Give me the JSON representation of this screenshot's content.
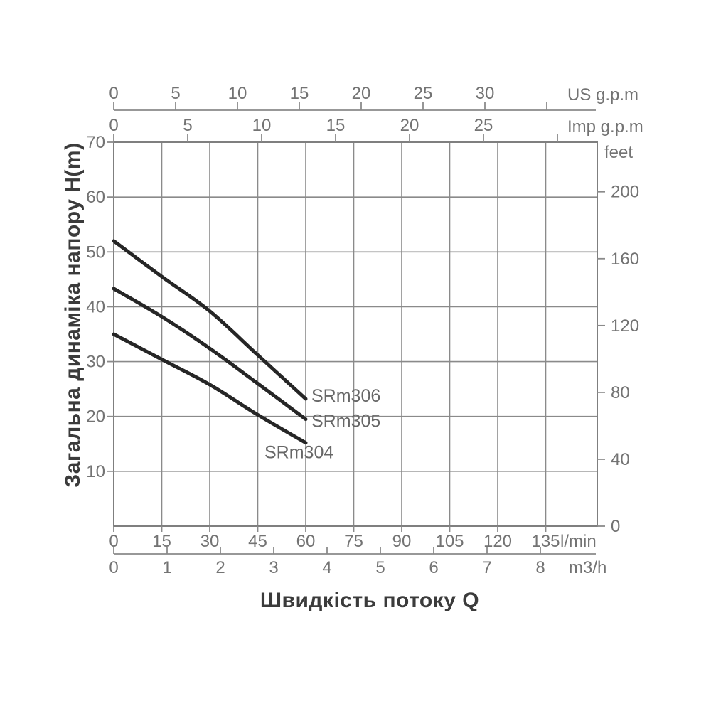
{
  "colors": {
    "grid": "#8a8a8a",
    "frame": "#7f7f7f",
    "curve": "#262626",
    "tick_text": "#737373",
    "curve_label_text": "#676767",
    "title_text": "#3b3b3b"
  },
  "chart_data": {
    "type": "line",
    "title": "",
    "xlabel": "Швидкість потоку Q",
    "ylabel": "Загальна динаміка напору H(m)",
    "x_range_lmin": [
      0,
      151
    ],
    "y_range_m": [
      0,
      70
    ],
    "grid": true,
    "legend_position": "inline-right-of-curves",
    "axes": {
      "top_us": {
        "unit": "US g.p.m",
        "ticks": [
          0,
          5,
          10,
          15,
          20,
          25,
          30
        ],
        "extra_ticks": [
          35
        ]
      },
      "top_imp": {
        "unit": "Imp g.p.m",
        "ticks": [
          0,
          5,
          10,
          15,
          20,
          25
        ],
        "extra_ticks": [
          30
        ]
      },
      "left_m": {
        "unit": "H(m)",
        "ticks": [
          70,
          60,
          50,
          40,
          30,
          20,
          10
        ]
      },
      "right_ft": {
        "unit": "feet",
        "ticks": [
          200,
          160,
          120,
          80,
          40,
          0
        ]
      },
      "bottom_lmin": {
        "unit": "l/min",
        "ticks": [
          0,
          15,
          30,
          45,
          60,
          75,
          90,
          105,
          120,
          135
        ]
      },
      "bottom_m3h": {
        "unit": "m3/h",
        "ticks": [
          0,
          1,
          2,
          3,
          4,
          5,
          6,
          7,
          8
        ]
      }
    },
    "series": [
      {
        "name": "SRm306",
        "q_lmin": [
          0,
          15,
          30,
          45,
          60
        ],
        "h_m": [
          52.0,
          45.5,
          39.2,
          31.2,
          23.2
        ]
      },
      {
        "name": "SRm305",
        "q_lmin": [
          0,
          15,
          30,
          45,
          60
        ],
        "h_m": [
          43.3,
          38.2,
          32.4,
          26.0,
          19.5
        ]
      },
      {
        "name": "SRm304",
        "q_lmin": [
          0,
          15,
          30,
          45,
          60
        ],
        "h_m": [
          35.0,
          30.4,
          25.8,
          20.3,
          15.2
        ]
      }
    ]
  }
}
